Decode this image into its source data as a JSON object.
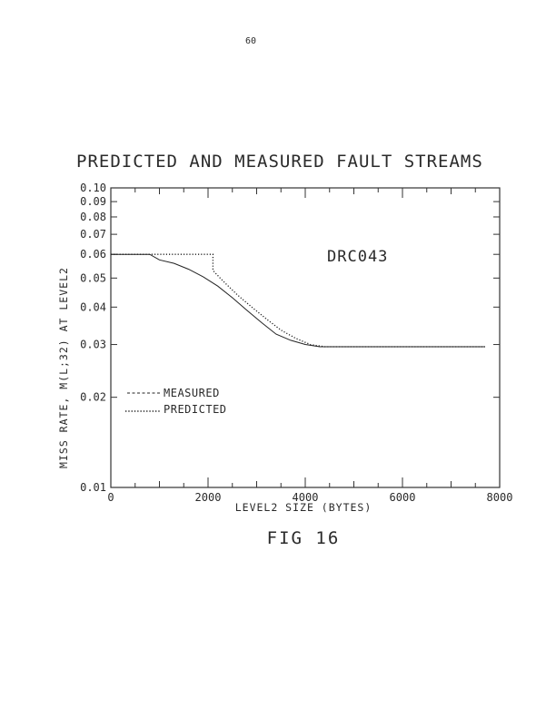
{
  "page_number": "60",
  "caption": "FIG 16",
  "chart_data": {
    "type": "line",
    "title": "PREDICTED AND MEASURED FAULT STREAMS",
    "annotation": "DRC043",
    "xlabel": "LEVEL2 SIZE (BYTES)",
    "ylabel": "MISS RATE, M(L;32) AT LEVEL2",
    "x_scale": "linear",
    "y_scale": "log",
    "xlim": [
      0,
      8000
    ],
    "ylim": [
      0.01,
      0.1
    ],
    "x_ticks": [
      0,
      2000,
      4000,
      6000,
      8000
    ],
    "x_tick_labels": [
      "0",
      "2000",
      "4000",
      "6000",
      "8000"
    ],
    "y_ticks": [
      0.01,
      0.02,
      0.03,
      0.04,
      0.05,
      0.06,
      0.07,
      0.08,
      0.09,
      0.1
    ],
    "y_tick_labels": [
      "0.01",
      "0.02",
      "0.03",
      "0.04",
      "0.05",
      "0.06",
      "0.07",
      "0.08",
      "0.09",
      "0.10"
    ],
    "grid": false,
    "legend_position": "lower-left",
    "series": [
      {
        "name": "MEASURED",
        "style": "solid",
        "points": [
          [
            0,
            0.06
          ],
          [
            800,
            0.06
          ],
          [
            1000,
            0.0575
          ],
          [
            1300,
            0.056
          ],
          [
            1600,
            0.0535
          ],
          [
            1900,
            0.0505
          ],
          [
            2200,
            0.047
          ],
          [
            2500,
            0.043
          ],
          [
            2800,
            0.039
          ],
          [
            3100,
            0.0355
          ],
          [
            3400,
            0.0325
          ],
          [
            3700,
            0.031
          ],
          [
            4000,
            0.03
          ],
          [
            4300,
            0.0295
          ],
          [
            5000,
            0.0295
          ],
          [
            6000,
            0.0295
          ],
          [
            7000,
            0.0295
          ],
          [
            7700,
            0.0295
          ]
        ]
      },
      {
        "name": "PREDICTED",
        "style": "dotted",
        "points": [
          [
            0,
            0.06
          ],
          [
            2100,
            0.06
          ],
          [
            2100,
            0.053
          ],
          [
            2300,
            0.049
          ],
          [
            2600,
            0.044
          ],
          [
            2900,
            0.04
          ],
          [
            3200,
            0.0365
          ],
          [
            3500,
            0.0335
          ],
          [
            3800,
            0.0315
          ],
          [
            4100,
            0.03
          ],
          [
            4400,
            0.0295
          ],
          [
            5000,
            0.0295
          ],
          [
            6000,
            0.0295
          ],
          [
            7000,
            0.0295
          ],
          [
            7700,
            0.0295
          ]
        ]
      }
    ]
  }
}
